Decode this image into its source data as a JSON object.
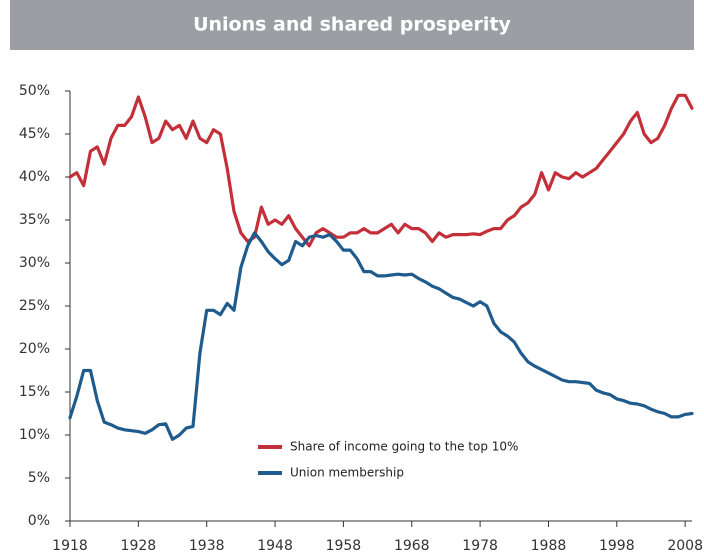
{
  "chart_data": {
    "type": "line",
    "title": "Unions and shared prosperity",
    "x": [
      1918,
      1919,
      1920,
      1921,
      1922,
      1923,
      1924,
      1925,
      1926,
      1927,
      1928,
      1929,
      1930,
      1931,
      1932,
      1933,
      1934,
      1935,
      1936,
      1937,
      1938,
      1939,
      1940,
      1941,
      1942,
      1943,
      1944,
      1945,
      1946,
      1947,
      1948,
      1949,
      1950,
      1951,
      1952,
      1953,
      1954,
      1955,
      1956,
      1957,
      1958,
      1959,
      1960,
      1961,
      1962,
      1963,
      1964,
      1965,
      1966,
      1967,
      1968,
      1969,
      1970,
      1971,
      1972,
      1973,
      1974,
      1975,
      1976,
      1977,
      1978,
      1979,
      1980,
      1981,
      1982,
      1983,
      1984,
      1985,
      1986,
      1987,
      1988,
      1989,
      1990,
      1991,
      1992,
      1993,
      1994,
      1995,
      1996,
      1997,
      1998,
      1999,
      2000,
      2001,
      2002,
      2003,
      2004,
      2005,
      2006,
      2007,
      2008,
      2009
    ],
    "series": [
      {
        "name": "Share of income going to the top 10%",
        "color": "#c3303a",
        "values": [
          40,
          40.5,
          39,
          43,
          43.5,
          41.5,
          44.5,
          46,
          46,
          47,
          49.3,
          47,
          44,
          44.5,
          46.5,
          45.5,
          46,
          44.5,
          46.5,
          44.5,
          44,
          45.5,
          45,
          41,
          36,
          33.5,
          32.5,
          33,
          36.5,
          34.5,
          35,
          34.5,
          35.5,
          34,
          33,
          32,
          33.5,
          34,
          33.5,
          33,
          33,
          33.5,
          33.5,
          34,
          33.5,
          33.5,
          34,
          34.5,
          33.5,
          34.5,
          34,
          34,
          33.5,
          32.5,
          33.5,
          33,
          33.3,
          33.3,
          33.3,
          33.4,
          33.3,
          33.7,
          34,
          34,
          35,
          35.5,
          36.5,
          37,
          38,
          40.5,
          38.5,
          40.5,
          40,
          39.8,
          40.5,
          40,
          40.5,
          41,
          42,
          43,
          44,
          45,
          46.5,
          47.5,
          45,
          44,
          44.5,
          46,
          48,
          49.5,
          49.5,
          48
        ]
      },
      {
        "name": "Union membership",
        "color": "#1f5b8c",
        "values": [
          12,
          14.5,
          17.5,
          17.5,
          14,
          11.5,
          11.2,
          10.8,
          10.6,
          10.5,
          10.4,
          10.2,
          10.6,
          11.2,
          11.3,
          9.5,
          10,
          10.8,
          11,
          19.5,
          24.5,
          24.5,
          24,
          25.3,
          24.5,
          29.5,
          32,
          33.5,
          32.5,
          31.3,
          30.5,
          29.8,
          30.3,
          32.5,
          32,
          33,
          33.2,
          33,
          33.3,
          32.5,
          31.5,
          31.5,
          30.5,
          29,
          29,
          28.5,
          28.5,
          28.6,
          28.7,
          28.6,
          28.7,
          28.2,
          27.8,
          27.3,
          27,
          26.5,
          26,
          25.8,
          25.4,
          25,
          25.5,
          25,
          23,
          22,
          21.5,
          20.8,
          19.5,
          18.5,
          18,
          17.6,
          17.2,
          16.8,
          16.4,
          16.2,
          16.2,
          16.1,
          16,
          15.2,
          14.9,
          14.7,
          14.2,
          14,
          13.7,
          13.6,
          13.4,
          13,
          12.7,
          12.5,
          12.1,
          12.1,
          12.4,
          12.5
        ]
      }
    ],
    "xlim": [
      1918,
      2009
    ],
    "xticks": [
      1918,
      1928,
      1938,
      1948,
      1958,
      1968,
      1978,
      1988,
      1998,
      2008
    ],
    "ylim": [
      0,
      50
    ],
    "yticks": [
      {
        "value": 0,
        "label": "0%"
      },
      {
        "value": 5,
        "label": "5%"
      },
      {
        "value": 10,
        "label": "10%"
      },
      {
        "value": 15,
        "label": "15%"
      },
      {
        "value": 20,
        "label": "20%"
      },
      {
        "value": 25,
        "label": "25%"
      },
      {
        "value": 30,
        "label": "30%"
      },
      {
        "value": 35,
        "label": "35%"
      },
      {
        "value": 40,
        "label": "40%"
      },
      {
        "value": 45,
        "label": "45%"
      },
      {
        "value": 50,
        "label": "50%"
      }
    ],
    "grid": false
  }
}
